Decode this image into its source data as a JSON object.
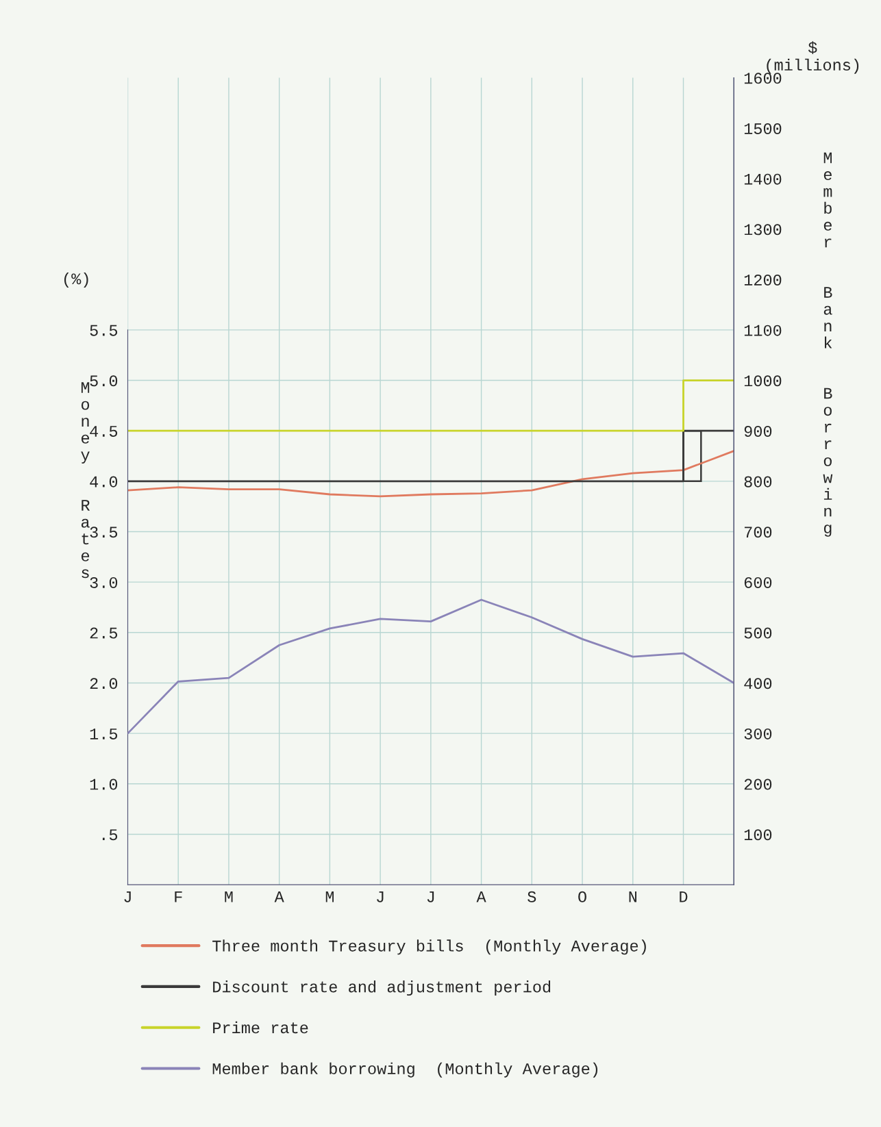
{
  "chart_data": {
    "type": "line",
    "ylabel": "Money Rates",
    "y2label": "Member Bank Borrowing",
    "annotations": [
      "(%)",
      "$\n(millions)"
    ],
    "categories": [
      "J",
      "F",
      "M",
      "A",
      "M",
      "J",
      "J",
      "A",
      "S",
      "O",
      "N",
      "D",
      null
    ],
    "ylim": [
      0,
      8
    ],
    "yticks": [
      {
        "value": 0.5,
        "label": ".5"
      },
      {
        "value": 1,
        "label": "1.0"
      },
      1.5,
      {
        "value": 2,
        "label": "2.0"
      },
      2.5,
      {
        "value": 3,
        "label": "3.0"
      },
      3.5,
      {
        "value": 4,
        "label": "4.0"
      },
      4.5,
      {
        "value": 5,
        "label": "5.0"
      },
      5.5
    ],
    "y2lim": [
      0,
      1600
    ],
    "y2ticks": [
      100,
      200,
      300,
      400,
      500,
      600,
      700,
      800,
      900,
      1000,
      1100,
      1200,
      1300,
      1400,
      1500,
      1600
    ],
    "series": [
      {
        "name": "Three month Treasury bills  (Monthly Average)",
        "color": "#e07a5f",
        "values": [
          3.91,
          3.94,
          3.92,
          3.92,
          3.87,
          3.85,
          3.87,
          3.88,
          3.91,
          4.02,
          4.08,
          4.11,
          4.3
        ]
      },
      {
        "name": "Discount rate and adjustment period",
        "color": "#3a3a3a",
        "type": "step",
        "values": [
          4.0,
          4.0,
          4.0,
          4.0,
          4.0,
          4.0,
          4.0,
          4.0,
          4.0,
          4.0,
          4.0,
          4.5,
          4.5
        ]
      },
      {
        "name": "Prime rate",
        "color": "#c8d42a",
        "type": "step",
        "values": [
          4.5,
          4.5,
          4.5,
          4.5,
          4.5,
          4.5,
          4.5,
          4.5,
          4.5,
          4.5,
          4.5,
          5.0,
          5.0
        ]
      },
      {
        "name": "Member bank borrowing  (Monthly Average)",
        "color": "#8a84b8",
        "axis": "y2",
        "values": [
          300,
          403,
          410,
          475,
          508,
          527,
          522,
          565,
          530,
          487,
          452,
          459,
          400
        ]
      }
    ],
    "grid": true,
    "legend": "bottom",
    "marker": "none",
    "line_style": "solid"
  }
}
